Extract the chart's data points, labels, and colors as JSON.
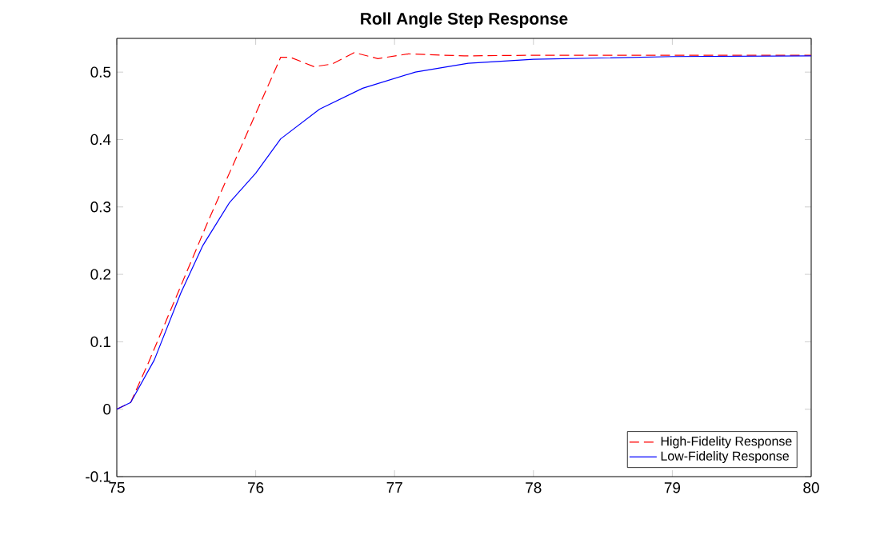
{
  "chart_data": {
    "type": "line",
    "title": "Roll Angle Step Response",
    "series": [
      {
        "name": "High-Fidelity Response",
        "color": "#ff0000",
        "line_style": "dashed",
        "x": [
          75,
          75.1,
          75.23,
          75.66,
          76.18,
          76.25,
          76.42,
          76.55,
          76.71,
          76.88,
          77.1,
          77.5,
          78,
          79,
          80
        ],
        "values": [
          0,
          0.01,
          0.07,
          0.28,
          0.522,
          0.522,
          0.508,
          0.512,
          0.529,
          0.52,
          0.527,
          0.524,
          0.525,
          0.525,
          0.525
        ]
      },
      {
        "name": "Low-Fidelity Response",
        "color": "#0000ff",
        "line_style": "solid",
        "x": [
          75,
          75.1,
          75.27,
          75.46,
          75.62,
          75.81,
          76.0,
          76.18,
          76.46,
          76.77,
          77.15,
          77.53,
          78,
          79,
          80
        ],
        "values": [
          0,
          0.01,
          0.073,
          0.172,
          0.243,
          0.306,
          0.35,
          0.401,
          0.445,
          0.476,
          0.5,
          0.513,
          0.519,
          0.523,
          0.524
        ]
      }
    ],
    "xlim": [
      75,
      80
    ],
    "ylim": [
      -0.1,
      0.55
    ],
    "xticks": [
      75,
      76,
      77,
      78,
      79,
      80
    ],
    "yticks": [
      -0.1,
      0,
      0.1,
      0.2,
      0.3,
      0.4,
      0.5
    ],
    "legend": "bottom right",
    "grid": false
  }
}
